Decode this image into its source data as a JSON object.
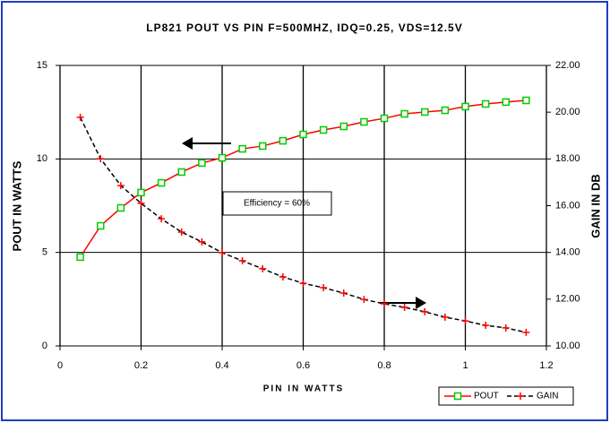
{
  "chart_data": {
    "type": "line",
    "title": "LP821 POUT VS PIN F=500MHZ, IDQ=0.25, VDS=12.5V",
    "x_label": "PIN IN WATTS",
    "y_label": "POUT IN WATTS",
    "y2_label": "GAIN IN DB",
    "annotation": "Efficiency = 60%",
    "x": [
      0.05,
      0.1,
      0.15,
      0.2,
      0.25,
      0.3,
      0.35,
      0.4,
      0.45,
      0.5,
      0.55,
      0.6,
      0.65,
      0.7,
      0.75,
      0.8,
      0.85,
      0.9,
      0.95,
      1.0,
      1.05,
      1.1,
      1.15
    ],
    "series": [
      {
        "name": "POUT",
        "color": "#ff0000",
        "marker_color": "#00cc00",
        "values": [
          4.75,
          6.42,
          7.38,
          8.2,
          8.72,
          9.3,
          9.78,
          10.06,
          10.54,
          10.69,
          10.97,
          11.31,
          11.55,
          11.74,
          11.98,
          12.17,
          12.41,
          12.51,
          12.6,
          12.8,
          12.94,
          13.04,
          13.13
        ]
      },
      {
        "name": "GAIN",
        "color": "#000000",
        "marker_color": "#ff0000",
        "axis": "y2",
        "values": [
          19.78,
          18.01,
          16.86,
          16.1,
          15.44,
          14.87,
          14.45,
          13.99,
          13.64,
          13.3,
          12.95,
          12.68,
          12.49,
          12.26,
          11.99,
          11.8,
          11.65,
          11.46,
          11.23,
          11.07,
          10.88,
          10.77,
          10.58
        ]
      }
    ],
    "xlim": [
      0,
      1.2
    ],
    "xticks": [
      0,
      0.2,
      0.4,
      0.6,
      0.8,
      1,
      1.2
    ],
    "ylim": [
      0,
      15
    ],
    "yticks": [
      0,
      5,
      10,
      15
    ],
    "y2lim": [
      10,
      22
    ],
    "y2ticks": [
      {
        "value": 10,
        "label": "10.00"
      },
      {
        "value": 12,
        "label": "12.00"
      },
      {
        "value": 14,
        "label": "14.00"
      },
      {
        "value": 16,
        "label": "16.00"
      },
      {
        "value": 18,
        "label": "18.00"
      },
      {
        "value": 20,
        "label": "20.00"
      },
      {
        "value": 22,
        "label": "22.00"
      }
    ],
    "grid": true,
    "legend": "bottom-right"
  }
}
